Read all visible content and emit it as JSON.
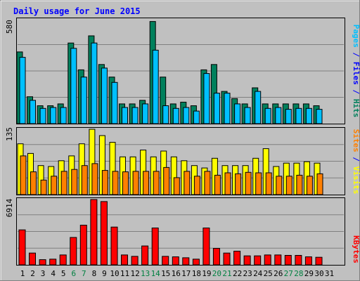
{
  "colors": {
    "background": "#c0c0c0",
    "hits": "#00805c",
    "files": "#00c0ff",
    "pages": "#00c0ff",
    "visits": "#ffff00",
    "sites": "#ff8000",
    "kbytes": "#ff0000",
    "title": "#0000ff",
    "weekend_label": "#008040",
    "weekday_label": "#000000"
  },
  "chart_data": [
    {
      "type": "bar",
      "title": "Daily usage for June 2015",
      "panel": "hits-files",
      "ymax_label": "580",
      "ylim": [
        0,
        580
      ],
      "grid": true,
      "legend": [
        {
          "name": "Pages",
          "color": "#00c0ff"
        },
        {
          "name": "/",
          "color": "#0000ff"
        },
        {
          "name": "Files",
          "color": "#0000ff"
        },
        {
          "name": "/",
          "color": "#0000ff"
        },
        {
          "name": "Hits",
          "color": "#00805c"
        }
      ],
      "categories": [
        "1",
        "2",
        "3",
        "4",
        "5",
        "6",
        "7",
        "8",
        "9",
        "10",
        "11",
        "12",
        "13",
        "14",
        "15",
        "16",
        "17",
        "18",
        "19",
        "20",
        "21",
        "22",
        "23",
        "24",
        "25",
        "26",
        "27",
        "28",
        "29",
        "30",
        "31"
      ],
      "series": [
        {
          "name": "Hits",
          "values": [
            400,
            150,
            100,
            100,
            110,
            450,
            300,
            490,
            330,
            260,
            110,
            110,
            130,
            570,
            260,
            110,
            120,
            100,
            300,
            330,
            180,
            140,
            110,
            200,
            110,
            110,
            110,
            110,
            110,
            100,
            0
          ]
        },
        {
          "name": "Files",
          "values": [
            370,
            130,
            85,
            90,
            90,
            420,
            260,
            450,
            310,
            230,
            90,
            90,
            110,
            410,
            100,
            85,
            90,
            70,
            280,
            170,
            170,
            110,
            90,
            180,
            85,
            90,
            80,
            85,
            85,
            80,
            0
          ]
        }
      ]
    },
    {
      "type": "bar",
      "panel": "visits-sites",
      "ymax_label": "135",
      "ylim": [
        0,
        135
      ],
      "grid": true,
      "legend": [
        {
          "name": "Sites",
          "color": "#ff8000"
        },
        {
          "name": "/",
          "color": "#0000ff"
        },
        {
          "name": "Visits",
          "color": "#ffff00"
        }
      ],
      "categories": [
        "1",
        "2",
        "3",
        "4",
        "5",
        "6",
        "7",
        "8",
        "9",
        "10",
        "11",
        "12",
        "13",
        "14",
        "15",
        "16",
        "17",
        "18",
        "19",
        "20",
        "21",
        "22",
        "23",
        "24",
        "25",
        "26",
        "27",
        "28",
        "29",
        "30",
        "31"
      ],
      "series": [
        {
          "name": "Visits",
          "values": [
            105,
            85,
            60,
            58,
            70,
            80,
            105,
            135,
            122,
            108,
            78,
            78,
            92,
            78,
            90,
            78,
            70,
            60,
            55,
            75,
            60,
            60,
            60,
            75,
            95,
            58,
            65,
            65,
            68,
            65,
            0
          ]
        },
        {
          "name": "Sites",
          "values": [
            80,
            47,
            30,
            38,
            48,
            52,
            60,
            64,
            50,
            48,
            47,
            48,
            48,
            48,
            56,
            35,
            48,
            38,
            48,
            40,
            45,
            43,
            46,
            45,
            45,
            38,
            38,
            40,
            38,
            43,
            0
          ]
        }
      ]
    },
    {
      "type": "bar",
      "panel": "kbytes",
      "ymax_label": "6914",
      "ylim": [
        0,
        6914
      ],
      "grid": true,
      "legend": [
        {
          "name": "KBytes",
          "color": "#ff0000"
        }
      ],
      "categories": [
        "1",
        "2",
        "3",
        "4",
        "5",
        "6",
        "7",
        "8",
        "9",
        "10",
        "11",
        "12",
        "13",
        "14",
        "15",
        "16",
        "17",
        "18",
        "19",
        "20",
        "21",
        "22",
        "23",
        "24",
        "25",
        "26",
        "27",
        "28",
        "29",
        "30",
        "31"
      ],
      "series": [
        {
          "name": "KBytes",
          "values": [
            3700,
            1250,
            550,
            600,
            1050,
            2900,
            4200,
            6914,
            6700,
            4000,
            1050,
            900,
            2000,
            3900,
            900,
            850,
            750,
            600,
            3900,
            1750,
            1250,
            1450,
            950,
            950,
            1050,
            1050,
            1000,
            1000,
            850,
            800,
            0
          ]
        }
      ]
    }
  ],
  "days": [
    {
      "label": "1",
      "weekend": false
    },
    {
      "label": "2",
      "weekend": false
    },
    {
      "label": "3",
      "weekend": false
    },
    {
      "label": "4",
      "weekend": false
    },
    {
      "label": "5",
      "weekend": false
    },
    {
      "label": "6",
      "weekend": true
    },
    {
      "label": "7",
      "weekend": true
    },
    {
      "label": "8",
      "weekend": false
    },
    {
      "label": "9",
      "weekend": false
    },
    {
      "label": "10",
      "weekend": false
    },
    {
      "label": "11",
      "weekend": false
    },
    {
      "label": "12",
      "weekend": false
    },
    {
      "label": "13",
      "weekend": true
    },
    {
      "label": "14",
      "weekend": true
    },
    {
      "label": "15",
      "weekend": false
    },
    {
      "label": "16",
      "weekend": false
    },
    {
      "label": "17",
      "weekend": false
    },
    {
      "label": "18",
      "weekend": false
    },
    {
      "label": "19",
      "weekend": false
    },
    {
      "label": "20",
      "weekend": true
    },
    {
      "label": "21",
      "weekend": true
    },
    {
      "label": "22",
      "weekend": false
    },
    {
      "label": "23",
      "weekend": false
    },
    {
      "label": "24",
      "weekend": false
    },
    {
      "label": "25",
      "weekend": false
    },
    {
      "label": "26",
      "weekend": false
    },
    {
      "label": "27",
      "weekend": true
    },
    {
      "label": "28",
      "weekend": true
    },
    {
      "label": "29",
      "weekend": false
    },
    {
      "label": "30",
      "weekend": false
    },
    {
      "label": "31",
      "weekend": false
    }
  ]
}
